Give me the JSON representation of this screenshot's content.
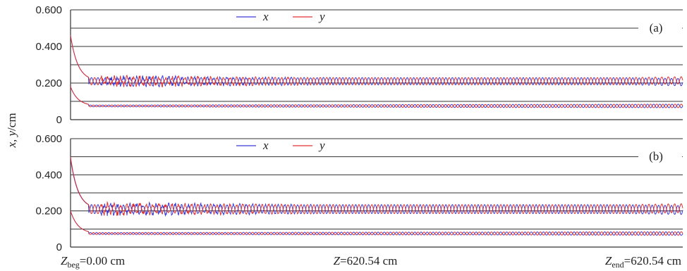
{
  "chart_data": [
    {
      "type": "line",
      "panel_label": "(a)",
      "ylabel": "x, y/cm",
      "ylim": [
        0,
        0.6
      ],
      "yticks": [
        "0.600",
        "0.400",
        "0.200",
        "0"
      ],
      "grid": true,
      "legend": {
        "placement": "top-center",
        "entries": [
          "x",
          "y"
        ]
      },
      "xlim": [
        0,
        620.54
      ],
      "x_unit": "cm",
      "series": [
        {
          "name": "x",
          "color": "#3a3ad6",
          "envelope_upper": {
            "start": 0.46,
            "settle": 0.21,
            "mid_amplitude": 0.02,
            "end_amplitude": 0.02
          },
          "envelope_lower": {
            "start": 0.18,
            "settle": 0.075,
            "mid_amplitude": 0.005,
            "end_amplitude": 0.01
          }
        },
        {
          "name": "y",
          "color": "#e03030",
          "envelope_upper": {
            "start": 0.46,
            "settle": 0.21,
            "mid_amplitude": 0.02,
            "end_amplitude": 0.02
          },
          "envelope_lower": {
            "start": 0.18,
            "settle": 0.075,
            "mid_amplitude": 0.005,
            "end_amplitude": 0.01
          }
        }
      ]
    },
    {
      "type": "line",
      "panel_label": "(b)",
      "ylabel": "x, y/cm",
      "ylim": [
        0,
        0.6
      ],
      "yticks": [
        "0.600",
        "0.400",
        "0.200",
        "0"
      ],
      "grid": true,
      "legend": {
        "placement": "top-center",
        "entries": [
          "x",
          "y"
        ]
      },
      "xlim": [
        0,
        620.54
      ],
      "x_unit": "cm",
      "series": [
        {
          "name": "x",
          "color": "#3a3ad6",
          "envelope_upper": {
            "start": 0.49,
            "settle": 0.21,
            "mid_amplitude": 0.025,
            "end_amplitude": 0.025
          },
          "envelope_lower": {
            "start": 0.2,
            "settle": 0.075,
            "mid_amplitude": 0.005,
            "end_amplitude": 0.01
          }
        },
        {
          "name": "y",
          "color": "#e03030",
          "envelope_upper": {
            "start": 0.5,
            "settle": 0.21,
            "mid_amplitude": 0.025,
            "end_amplitude": 0.025
          },
          "envelope_lower": {
            "start": 0.2,
            "settle": 0.075,
            "mid_amplitude": 0.005,
            "end_amplitude": 0.01
          }
        }
      ]
    }
  ],
  "shared_ylabel": "x, y/cm",
  "xaxis_labels": {
    "left": {
      "main": "Z",
      "sub": "beg",
      "rest": "=0.00 cm"
    },
    "center": {
      "main": "Z",
      "sub": "",
      "rest": "=620.54 cm"
    },
    "right": {
      "main": "Z",
      "sub": "end",
      "rest": "=620.54 cm"
    }
  }
}
